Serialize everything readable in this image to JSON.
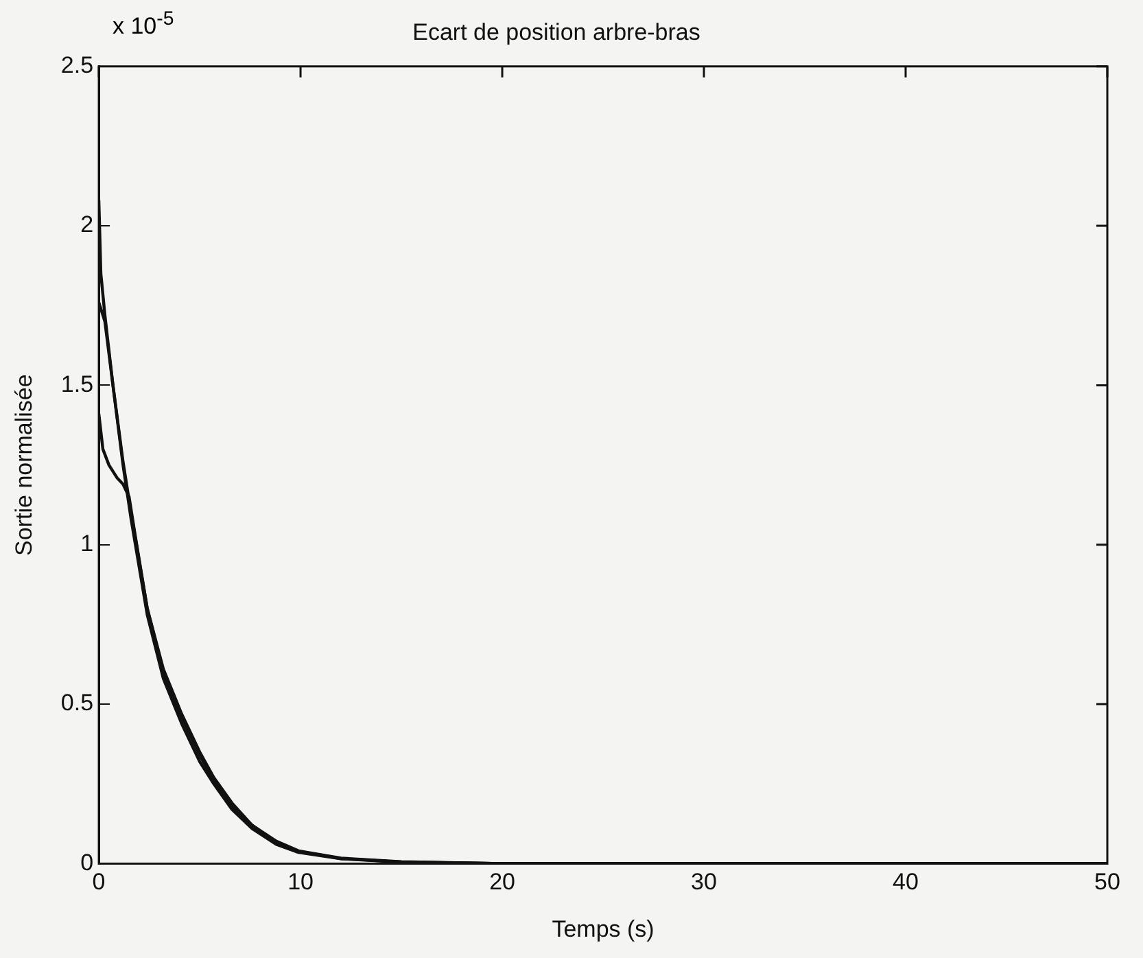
{
  "chart_data": {
    "type": "line",
    "title": "Ecart de position arbre-bras",
    "xlabel": "Temps (s)",
    "ylabel": "Sortie normalisée",
    "annotations": [
      "x 10$^{-5}$"
    ],
    "xlim": [
      0,
      50
    ],
    "xticks": [
      0,
      10,
      20,
      30,
      40,
      50
    ],
    "ylim": [
      0,
      2.5
    ],
    "yticks": [
      0,
      0.5,
      1,
      1.5,
      2,
      2.5
    ],
    "grid": false,
    "legend": false,
    "marker": "none",
    "line_style": "solid",
    "series": [
      {
        "color": "#111111",
        "x": [
          0,
          0.1,
          0.3,
          0.7,
          1.2,
          1.6,
          2.4,
          3.2,
          4.1,
          5,
          5.7,
          6.6,
          7.6,
          8.8,
          9.9,
          12,
          15,
          20,
          30,
          50
        ],
        "values": [
          2.08,
          1.85,
          1.72,
          1.5,
          1.25,
          1.08,
          0.78,
          0.58,
          0.44,
          0.32,
          0.25,
          0.17,
          0.11,
          0.06,
          0.035,
          0.015,
          0.005,
          0,
          0,
          0
        ]
      },
      {
        "color": "#111111",
        "x": [
          0,
          0.1,
          0.3,
          0.7,
          1.2,
          1.6,
          2.4,
          3.2,
          4.1,
          5,
          5.7,
          6.6,
          7.6,
          8.8,
          9.9,
          12,
          15,
          20,
          30,
          50
        ],
        "values": [
          1.76,
          1.74,
          1.7,
          1.5,
          1.26,
          1.1,
          0.8,
          0.61,
          0.47,
          0.35,
          0.27,
          0.19,
          0.12,
          0.07,
          0.04,
          0.017,
          0.006,
          0,
          0,
          0
        ]
      },
      {
        "color": "#111111",
        "x": [
          0,
          0.2,
          0.5,
          0.9,
          1.2,
          1.5,
          1.8,
          2.4,
          3.2,
          4.1,
          5,
          5.7,
          6.6,
          7.6,
          8.8,
          9.9,
          12,
          15,
          20,
          30,
          50
        ],
        "values": [
          1.41,
          1.3,
          1.25,
          1.21,
          1.19,
          1.15,
          1.03,
          0.8,
          0.6,
          0.46,
          0.34,
          0.26,
          0.18,
          0.12,
          0.065,
          0.038,
          0.016,
          0.005,
          0,
          0,
          0
        ]
      }
    ]
  }
}
